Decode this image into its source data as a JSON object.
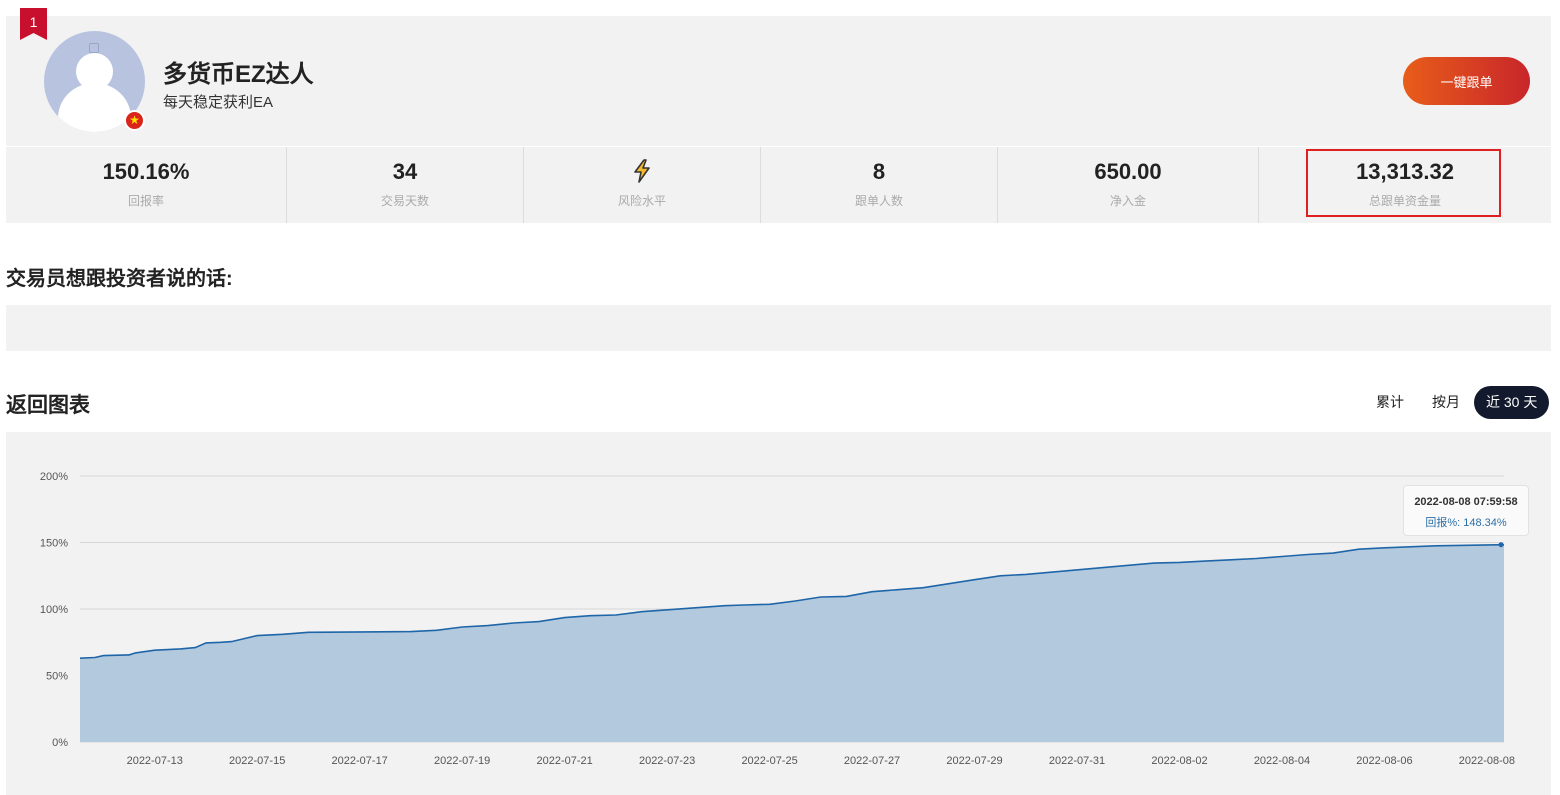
{
  "profile": {
    "rank": "1",
    "name": "多货币EZ达人",
    "tagline": "每天稳定获利EA",
    "follow_label": "一键跟单"
  },
  "stats": [
    {
      "value": "150.16%",
      "label": "回报率"
    },
    {
      "value": "34",
      "label": "交易天数"
    },
    {
      "value": "",
      "label": "风险水平",
      "icon": "lightning-icon"
    },
    {
      "value": "8",
      "label": "跟单人数"
    },
    {
      "value": "650.00",
      "label": "净入金"
    },
    {
      "value": "13,313.32",
      "label": "总跟单资金量"
    }
  ],
  "message": {
    "title": "交易员想跟投资者说的话:",
    "body": ""
  },
  "chart_section": {
    "title": "返回图表",
    "tabs": [
      "累计",
      "按月",
      "近 30 天"
    ],
    "active_tab": "近 30 天"
  },
  "tooltip": {
    "time": "2022-08-08 07:59:58",
    "return_text": "回报%: 148.34%"
  },
  "colors": {
    "line": "#1f66a8",
    "fill": "#b3c9de",
    "accent": "#c8262a",
    "active_tab": "#131a2e"
  },
  "chart_data": {
    "type": "area",
    "title": "",
    "xlabel": "",
    "ylabel": "",
    "ylim": [
      0,
      200
    ],
    "y_ticks": [
      "0%",
      "50%",
      "100%",
      "150%",
      "200%"
    ],
    "x_ticks": [
      "2022-07-13",
      "2022-07-15",
      "2022-07-17",
      "2022-07-19",
      "2022-07-21",
      "2022-07-23",
      "2022-07-25",
      "2022-07-27",
      "2022-07-29",
      "2022-07-31",
      "2022-08-02",
      "2022-08-04",
      "2022-08-06",
      "2022-08-08"
    ],
    "x_range": [
      "2022-07-11T13:00",
      "2022-08-08T08:00"
    ],
    "grid": true,
    "series": [
      {
        "x": [
          "2022-07-11T13:00",
          "2022-07-11T20:00",
          "2022-07-12T00:00",
          "2022-07-12T12:00",
          "2022-07-12T15:00",
          "2022-07-13T00:00",
          "2022-07-13T12:00",
          "2022-07-13T19:00",
          "2022-07-14T00:00",
          "2022-07-14T07:00",
          "2022-07-14T12:00",
          "2022-07-15T00:00",
          "2022-07-15T12:00",
          "2022-07-16T00:00",
          "2022-07-18T00:00",
          "2022-07-18T12:00",
          "2022-07-19T00:00",
          "2022-07-19T12:00",
          "2022-07-20T00:00",
          "2022-07-20T12:00",
          "2022-07-21T00:00",
          "2022-07-21T12:00",
          "2022-07-22T00:00",
          "2022-07-22T12:00",
          "2022-07-24T03:00",
          "2022-07-24T12:00",
          "2022-07-25T00:00",
          "2022-07-25T12:00",
          "2022-07-26T00:00",
          "2022-07-26T12:00",
          "2022-07-27T00:00",
          "2022-07-27T12:00",
          "2022-07-28T00:00",
          "2022-07-28T12:00",
          "2022-07-29T00:00",
          "2022-07-29T12:00",
          "2022-07-30T00:00",
          "2022-08-01T12:00",
          "2022-08-02T00:00",
          "2022-08-02T12:00",
          "2022-08-03T00:00",
          "2022-08-03T12:00",
          "2022-08-04T00:00",
          "2022-08-04T12:00",
          "2022-08-05T00:00",
          "2022-08-05T12:00",
          "2022-08-06T00:00",
          "2022-08-07T00:00",
          "2022-08-08T08:00"
        ],
        "values": [
          63,
          63.5,
          65,
          65.5,
          67,
          69,
          70,
          71,
          74.5,
          75,
          75.5,
          80,
          81,
          82.5,
          83,
          84,
          86.5,
          87.5,
          89.5,
          90.5,
          93.5,
          95,
          95.5,
          98,
          102.5,
          103,
          103.5,
          106,
          109,
          109.5,
          113,
          114.5,
          116,
          119,
          122,
          125,
          126,
          134.5,
          135,
          136,
          137,
          138,
          139.5,
          141,
          142,
          145,
          146,
          147.5,
          148.34
        ]
      }
    ]
  }
}
